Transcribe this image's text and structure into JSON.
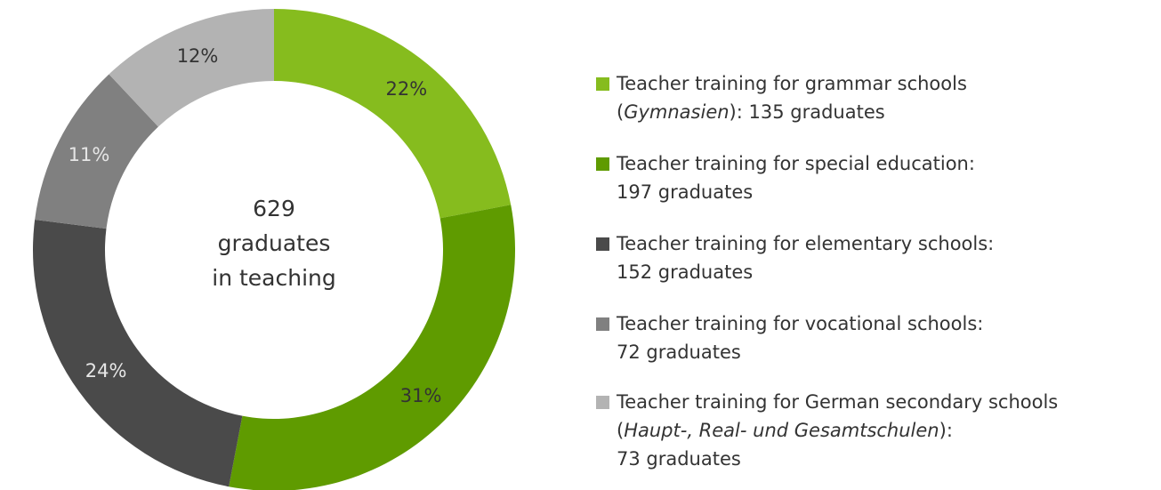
{
  "chart_data": {
    "type": "pie",
    "donut": true,
    "center_text": [
      "629",
      "graduates",
      "in teaching"
    ],
    "values": [
      22,
      31,
      24,
      11,
      12
    ],
    "value_labels": [
      "22%",
      "31%",
      "24%",
      "11%",
      "12%"
    ],
    "colors": [
      "#86bc1e",
      "#5f9b00",
      "#4a4a4a",
      "#808080",
      "#b3b3b3"
    ],
    "label_colors": [
      "#333333",
      "#333333",
      "#e6e6e6",
      "#e6e6e6",
      "#333333"
    ],
    "categories": [
      [
        [
          {
            "text": "Teacher training for grammar schools"
          }
        ],
        [
          {
            "text": "("
          },
          {
            "text": "Gymnasien",
            "italic": true
          },
          {
            "text": "): 135 graduates"
          }
        ]
      ],
      [
        [
          {
            "text": "Teacher training for special education:"
          }
        ],
        [
          {
            "text": "197 graduates"
          }
        ]
      ],
      [
        [
          {
            "text": "Teacher training for elementary schools:"
          }
        ],
        [
          {
            "text": "152 graduates"
          }
        ]
      ],
      [
        [
          {
            "text": "Teacher training for vocational schools:"
          }
        ],
        [
          {
            "text": "72 graduates"
          }
        ]
      ],
      [
        [
          {
            "text": "Teacher training for German secondary schools"
          }
        ],
        [
          {
            "text": "("
          },
          {
            "text": "Haupt-, Real- und Gesamtschulen",
            "italic": true
          },
          {
            "text": "):"
          }
        ],
        [
          {
            "text": "73 graduates"
          }
        ]
      ]
    ]
  }
}
